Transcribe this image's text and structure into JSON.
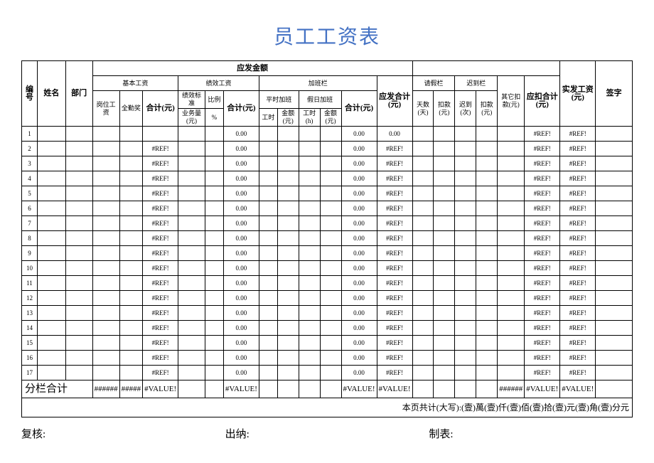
{
  "title": "员工工资表",
  "title_color": "#4472c4",
  "headers": {
    "no": "编号",
    "name": "姓名",
    "dept": "部门",
    "yingfa": "应发金额",
    "basic": "基本工资",
    "perf": "绩效工资",
    "ot": "加班栏",
    "yingfa_hj": "应发合计(元)",
    "post": "岗位工资",
    "full": "全勤奖",
    "hj1": "合计(元)",
    "perfstd": "绩效标准",
    "ratio": "比例",
    "hj2": "合计(元)",
    "biz": "业务量(元)",
    "pct": "%",
    "ot_norm": "平时加班",
    "ot_holi": "假日加班",
    "hj3": "合计(元)",
    "wh": "工时",
    "amt": "金额(元)",
    "wh2": "工时(h)",
    "amt2": "金额(元)",
    "leave": "请假栏",
    "late": "迟到栏",
    "other": "其它扣款(元)",
    "koukj": "应扣合计(元)",
    "days": "天数(天)",
    "ded1": "扣款(元)",
    "times": "迟到(次)",
    "ded2": "扣款(元)",
    "net": "实发工资(元)",
    "sign": "签字"
  },
  "rows": [
    {
      "no": "1",
      "hj1": "",
      "hj2": "0.00",
      "hj3": "0.00",
      "yf": "0.00",
      "kkj": "#REF!",
      "net": "#REF!"
    },
    {
      "no": "2",
      "hj1": "#REF!",
      "hj2": "0.00",
      "hj3": "0.00",
      "yf": "#REF!",
      "kkj": "#REF!",
      "net": "#REF!"
    },
    {
      "no": "3",
      "hj1": "#REF!",
      "hj2": "0.00",
      "hj3": "0.00",
      "yf": "#REF!",
      "kkj": "#REF!",
      "net": "#REF!"
    },
    {
      "no": "4",
      "hj1": "#REF!",
      "hj2": "0.00",
      "hj3": "0.00",
      "yf": "#REF!",
      "kkj": "#REF!",
      "net": "#REF!"
    },
    {
      "no": "5",
      "hj1": "#REF!",
      "hj2": "0.00",
      "hj3": "0.00",
      "yf": "#REF!",
      "kkj": "#REF!",
      "net": "#REF!"
    },
    {
      "no": "6",
      "hj1": "#REF!",
      "hj2": "0.00",
      "hj3": "0.00",
      "yf": "#REF!",
      "kkj": "#REF!",
      "net": "#REF!"
    },
    {
      "no": "7",
      "hj1": "#REF!",
      "hj2": "0.00",
      "hj3": "0.00",
      "yf": "#REF!",
      "kkj": "#REF!",
      "net": "#REF!"
    },
    {
      "no": "8",
      "hj1": "#REF!",
      "hj2": "0.00",
      "hj3": "0.00",
      "yf": "#REF!",
      "kkj": "#REF!",
      "net": "#REF!"
    },
    {
      "no": "9",
      "hj1": "#REF!",
      "hj2": "0.00",
      "hj3": "0.00",
      "yf": "#REF!",
      "kkj": "#REF!",
      "net": "#REF!"
    },
    {
      "no": "10",
      "hj1": "#REF!",
      "hj2": "0.00",
      "hj3": "0.00",
      "yf": "#REF!",
      "kkj": "#REF!",
      "net": "#REF!"
    },
    {
      "no": "11",
      "hj1": "#REF!",
      "hj2": "0.00",
      "hj3": "0.00",
      "yf": "#REF!",
      "kkj": "#REF!",
      "net": "#REF!"
    },
    {
      "no": "12",
      "hj1": "#REF!",
      "hj2": "0.00",
      "hj3": "0.00",
      "yf": "#REF!",
      "kkj": "#REF!",
      "net": "#REF!"
    },
    {
      "no": "13",
      "hj1": "#REF!",
      "hj2": "0.00",
      "hj3": "0.00",
      "yf": "#REF!",
      "kkj": "#REF!",
      "net": "#REF!"
    },
    {
      "no": "14",
      "hj1": "#REF!",
      "hj2": "0.00",
      "hj3": "0.00",
      "yf": "#REF!",
      "kkj": "#REF!",
      "net": "#REF!"
    },
    {
      "no": "15",
      "hj1": "#REF!",
      "hj2": "0.00",
      "hj3": "0.00",
      "yf": "#REF!",
      "kkj": "#REF!",
      "net": "#REF!"
    },
    {
      "no": "16",
      "hj1": "#REF!",
      "hj2": "0.00",
      "hj3": "0.00",
      "yf": "#REF!",
      "kkj": "#REF!",
      "net": "#REF!"
    },
    {
      "no": "17",
      "hj1": "#REF!",
      "hj2": "0.00",
      "hj3": "0.00",
      "yf": "#REF!",
      "kkj": "#REF!",
      "net": "#REF!"
    }
  ],
  "sum": {
    "lbl": "分栏合计",
    "c1": "######",
    "c2": "#####",
    "hj1": "#VALUE!",
    "hj2": "#VALUE!",
    "hj3": "#VALUE!",
    "yf": "#VALUE!",
    "other": "######",
    "kkj": "#VALUE!",
    "net": "#VALUE!"
  },
  "footer": "本页共计(大写):(壹)萬(壹)仟(壹)佰(壹)拾(壹)元(壹)角(壹)分元",
  "sign": {
    "a": "复核:",
    "b": "出纳:",
    "c": "制表:"
  }
}
